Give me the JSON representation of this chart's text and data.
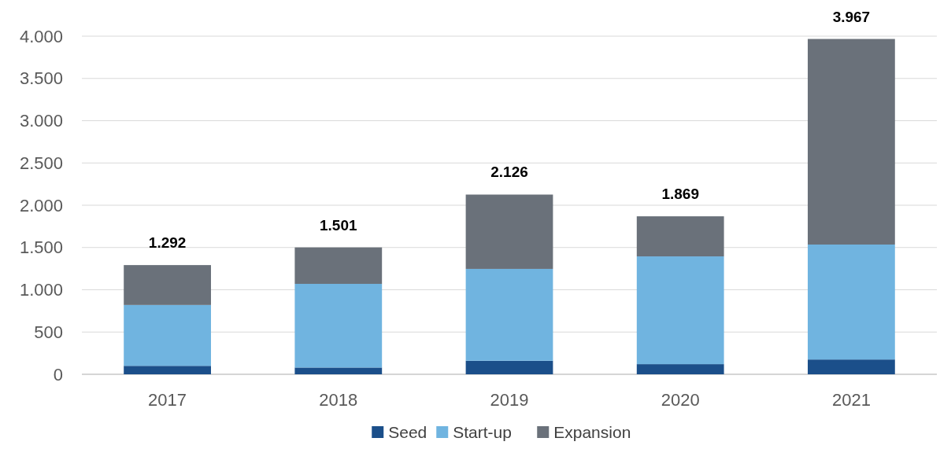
{
  "chart_data": {
    "type": "bar",
    "stacked": true,
    "categories": [
      "2017",
      "2018",
      "2019",
      "2020",
      "2021"
    ],
    "series": [
      {
        "name": "Seed",
        "color": "#1b4f8a",
        "values": [
          100,
          80,
          160,
          120,
          175
        ]
      },
      {
        "name": "Start-up",
        "color": "#70b4e0",
        "values": [
          720,
          990,
          1087,
          1275,
          1360
        ]
      },
      {
        "name": "Expansion",
        "color": "#6a717a",
        "values": [
          472,
          431,
          879,
          474,
          2432
        ]
      }
    ],
    "totals": [
      "1.292",
      "1.501",
      "2.126",
      "1.869",
      "3.967"
    ],
    "ylim": [
      0,
      4000
    ],
    "yticks": [
      {
        "value": 0,
        "label": "0"
      },
      {
        "value": 500,
        "label": "500"
      },
      {
        "value": 1000,
        "label": "1.000"
      },
      {
        "value": 1500,
        "label": "1.500"
      },
      {
        "value": 2000,
        "label": "2.000"
      },
      {
        "value": 2500,
        "label": "2.500"
      },
      {
        "value": 3000,
        "label": "3.000"
      },
      {
        "value": 3500,
        "label": "3.500"
      },
      {
        "value": 4000,
        "label": "4.000"
      }
    ],
    "grid": "y",
    "legend": "bottom"
  }
}
